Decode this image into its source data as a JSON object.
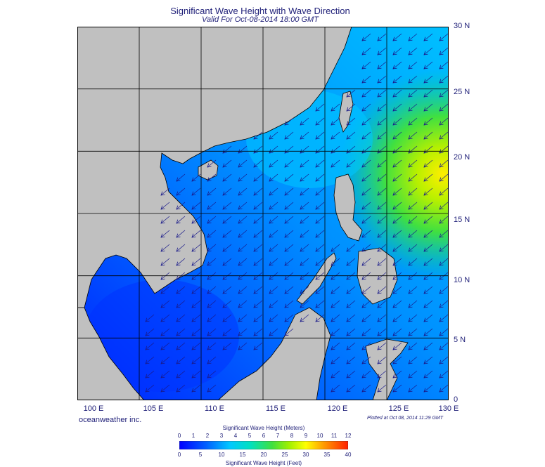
{
  "title": "Significant Wave Height with Wave Direction",
  "subtitle": "Valid For Oct-08-2014 18:00 GMT",
  "credit": "oceanweather inc.",
  "plotted": "Plotted at Oct 08, 2014 11:29 GMT",
  "lat_labels": [
    "30 N",
    "25 N",
    "20 N",
    "15 N",
    "10 N",
    "5 N",
    "0"
  ],
  "lon_labels": [
    "100 E",
    "105 E",
    "110 E",
    "115 E",
    "120 E",
    "125 E",
    "130 E"
  ],
  "colorbar": {
    "title_top": "Significant Wave Height (Meters)",
    "title_bottom": "Significant Wave Height (Feet)",
    "meters": [
      "0",
      "1",
      "2",
      "3",
      "4",
      "5",
      "6",
      "7",
      "8",
      "9",
      "10",
      "11",
      "12"
    ],
    "feet": [
      "0",
      "5",
      "10",
      "15",
      "20",
      "25",
      "30",
      "35",
      "40"
    ]
  },
  "colors": {
    "land": "#c0c0c0",
    "gridline": "#000000",
    "low_wave": "#0000ff",
    "mid_wave": "#00c8ff",
    "high_wave": "#ffff00"
  },
  "wave_direction": "northeast-to-southwest"
}
